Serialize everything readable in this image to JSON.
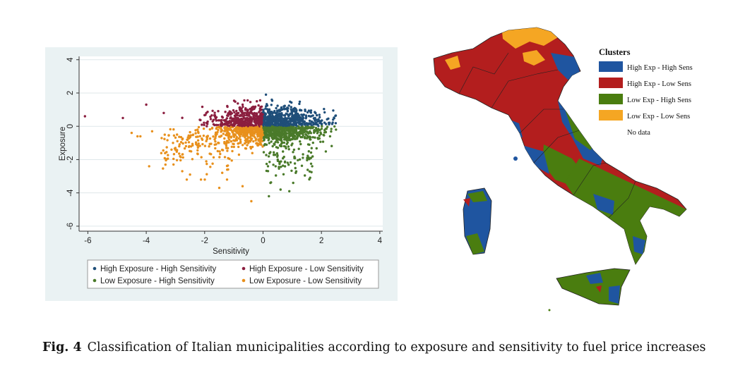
{
  "caption": {
    "label": "Fig. 4",
    "text": "Classification of Italian municipalities according to exposure and sensitivity to fuel price increases"
  },
  "chart_data": {
    "type": "scatter",
    "xlabel": "Sensitivity",
    "ylabel": "Exposure",
    "xlim": [
      -6.3,
      4.1
    ],
    "ylim": [
      -6.3,
      4.2
    ],
    "xticks": [
      "-6",
      "-4",
      "-2",
      "0",
      "2",
      "4"
    ],
    "yticks": [
      "-6",
      "-4",
      "-2",
      "0",
      "2",
      "4"
    ],
    "grid": true,
    "legend_position": "bottom",
    "series": [
      {
        "name": "High Exposure - High Sensitivity",
        "color": "#1f4e79",
        "quadrant": "x>0,y>0"
      },
      {
        "name": "High Exposure - Low Sensitivity",
        "color": "#8b1e3f",
        "quadrant": "x<0,y>0"
      },
      {
        "name": "Low Exposure - High Sensitivity",
        "color": "#4a7a2a",
        "quadrant": "x>0,y<0"
      },
      {
        "name": "Low Exposure - Low Sensitivity",
        "color": "#e8901c",
        "quadrant": "x<0,y<0"
      }
    ],
    "outliers": [
      {
        "x": -6.1,
        "y": 0.6
      },
      {
        "x": -4.8,
        "y": 0.5
      },
      {
        "x": -4.0,
        "y": 1.3
      },
      {
        "x": -3.9,
        "y": -2.4
      },
      {
        "x": -4.5,
        "y": -0.4
      },
      {
        "x": -4.3,
        "y": -0.6
      },
      {
        "x": -4.2,
        "y": -0.6
      },
      {
        "x": -3.8,
        "y": -0.3
      },
      {
        "x": -2.5,
        "y": -2.9
      },
      {
        "x": -1.5,
        "y": -3.7
      },
      {
        "x": -0.7,
        "y": -3.6
      },
      {
        "x": -0.4,
        "y": -4.5
      },
      {
        "x": 0.2,
        "y": -4.2
      },
      {
        "x": 0.6,
        "y": -3.8
      },
      {
        "x": 0.9,
        "y": -3.9
      },
      {
        "x": 0.1,
        "y": 1.9
      },
      {
        "x": 0.3,
        "y": 1.6
      },
      {
        "x": 2.4,
        "y": 0.4
      },
      {
        "x": 2.5,
        "y": -0.2
      },
      {
        "x": -3.4,
        "y": 0.8
      }
    ]
  },
  "map": {
    "legend_title": "Clusters",
    "legend": [
      {
        "label": "High Exp - High Sens",
        "color": "#1f55a0"
      },
      {
        "label": "High Exp - Low Sens",
        "color": "#b31e1e"
      },
      {
        "label": "Low Exp - High Sens",
        "color": "#4a7d0f"
      },
      {
        "label": "Low Exp - Low Sens",
        "color": "#f5a623"
      },
      {
        "label": "No data",
        "color": "#ffffff"
      }
    ]
  }
}
